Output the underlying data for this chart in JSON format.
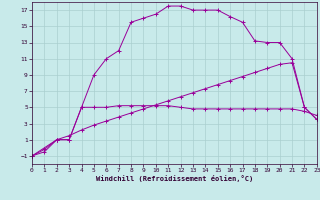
{
  "xlabel": "Windchill (Refroidissement éolien,°C)",
  "xlim": [
    0,
    23
  ],
  "ylim": [
    -2,
    18
  ],
  "xticks": [
    0,
    1,
    2,
    3,
    4,
    5,
    6,
    7,
    8,
    9,
    10,
    11,
    12,
    13,
    14,
    15,
    16,
    17,
    18,
    19,
    20,
    21,
    22,
    23
  ],
  "yticks": [
    -1,
    1,
    3,
    5,
    7,
    9,
    11,
    13,
    15,
    17
  ],
  "bg_color": "#c8eaea",
  "grid_color": "#aacfcf",
  "line_color": "#990099",
  "line1_x": [
    0,
    1,
    2,
    3,
    4,
    5,
    6,
    7,
    8,
    9,
    10,
    11,
    12,
    13,
    14,
    15,
    16,
    17,
    18,
    19,
    20,
    21,
    22,
    23
  ],
  "line1_y": [
    -1,
    -0.5,
    1,
    1,
    5,
    5,
    5,
    5.2,
    5.2,
    5.2,
    5.2,
    5.2,
    5.0,
    4.8,
    4.8,
    4.8,
    4.8,
    4.8,
    4.8,
    4.8,
    4.8,
    4.8,
    4.5,
    4.0
  ],
  "line2_x": [
    0,
    1,
    2,
    3,
    4,
    5,
    6,
    7,
    8,
    9,
    10,
    11,
    12,
    13,
    14,
    15,
    16,
    17,
    18,
    19,
    20,
    21,
    22,
    23
  ],
  "line2_y": [
    -1,
    -0.2,
    1,
    1.5,
    2.2,
    2.8,
    3.3,
    3.8,
    4.3,
    4.8,
    5.3,
    5.8,
    6.3,
    6.8,
    7.3,
    7.8,
    8.3,
    8.8,
    9.3,
    9.8,
    10.3,
    10.5,
    5,
    3.5
  ],
  "line3_x": [
    0,
    2,
    3,
    4,
    5,
    6,
    7,
    8,
    9,
    10,
    11,
    12,
    13,
    14,
    15,
    16,
    17,
    18,
    19,
    20,
    21,
    22,
    23
  ],
  "line3_y": [
    -1,
    1,
    1,
    5,
    9,
    11,
    12,
    15.5,
    16,
    16.5,
    17.5,
    17.5,
    17,
    17,
    17,
    16.2,
    15.5,
    13.2,
    13,
    13,
    11,
    5,
    3.5
  ]
}
